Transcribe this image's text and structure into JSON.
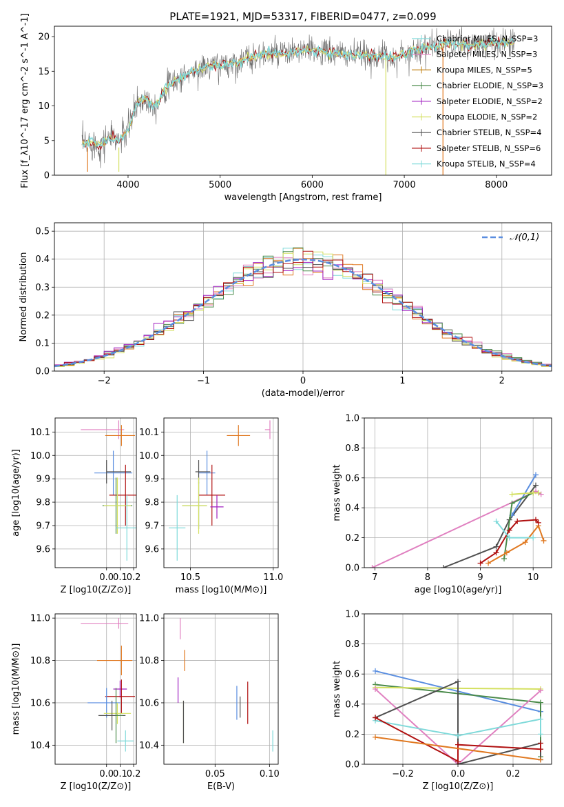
{
  "figure_title": "PLATE=1921, MJD=53317, FIBERID=0477, z=0.099",
  "colors": {
    "blue": "#5a8ee0",
    "orange": "#e07820",
    "green": "#4a8a4a",
    "purple": "#a020c0",
    "yellow": "#d4e060",
    "dark": "#505050",
    "red": "#b01010",
    "cyan": "#80dada",
    "pink": "#e080c0"
  },
  "chart_data": [
    {
      "id": "spectrum",
      "type": "line",
      "title": "PLATE=1921, MJD=53317, FIBERID=0477, z=0.099",
      "xlabel": "wavelength [Angstrom, rest frame]",
      "ylabel": "Flux [f_λ10^-17 erg cm^-2 s^-1 A^-1]",
      "xlim": [
        3200,
        8600
      ],
      "ylim": [
        0,
        21.5
      ],
      "xticks": [
        4000,
        5000,
        6000,
        7000,
        8000
      ],
      "yticks": [
        0,
        5,
        10,
        15,
        20
      ],
      "legend_position": "upper right",
      "legend": [
        {
          "label": "Chabrier MILES, N_SSP=3",
          "color": "#80dada"
        },
        {
          "label": "Salpeter MILES, N_SSP=3",
          "color": "#e080c0"
        },
        {
          "label": "Kroupa MILES, N_SSP=5",
          "color": "#c08010"
        },
        {
          "label": "Chabrier ELODIE, N_SSP=3",
          "color": "#4a8a4a"
        },
        {
          "label": "Salpeter ELODIE, N_SSP=2",
          "color": "#a020c0"
        },
        {
          "label": "Kroupa ELODIE, N_SSP=2",
          "color": "#d4e060"
        },
        {
          "label": "Chabrier STELIB, N_SSP=4",
          "color": "#505050"
        },
        {
          "label": "Salpeter STELIB, N_SSP=6",
          "color": "#b01010"
        },
        {
          "label": "Kroupa STELIB, N_SSP=4",
          "color": "#80dada"
        }
      ],
      "continuum": {
        "x": [
          3500,
          3600,
          3700,
          3800,
          3900,
          4000,
          4100,
          4200,
          4300,
          4400,
          4500,
          4700,
          4900,
          5100,
          5300,
          5500,
          5700,
          5900,
          6100,
          6300,
          6500,
          6700,
          6900,
          7100,
          7300,
          7500,
          7700,
          7900,
          8100,
          8200
        ],
        "y": [
          4.5,
          4.8,
          4.2,
          5.5,
          5.0,
          6.5,
          10.5,
          11.0,
          10.0,
          12.5,
          13.5,
          15.0,
          15.8,
          16.0,
          16.8,
          17.5,
          17.5,
          18.0,
          17.8,
          17.5,
          17.3,
          17.2,
          17.0,
          18.0,
          18.6,
          19.0,
          18.8,
          19.0,
          19.2,
          19.0
        ]
      },
      "spikes": [
        {
          "x": 3900,
          "y0": 4.0,
          "y1": 0.5,
          "color": "#d4e060"
        },
        {
          "x": 3560,
          "y0": 4.0,
          "y1": 0.5,
          "color": "#e07820"
        },
        {
          "x": 6800,
          "y0": 17.0,
          "y1": 0,
          "color": "#d4e060"
        },
        {
          "x": 7420,
          "y0": 18.5,
          "y1": 0,
          "color": "#e07820"
        }
      ]
    },
    {
      "id": "residuals",
      "type": "step",
      "xlabel": "(data-model)/error",
      "ylabel": "Normed distribution",
      "xlim": [
        -2.5,
        2.5
      ],
      "ylim": [
        0,
        0.53
      ],
      "xticks": [
        -2,
        -1,
        0,
        1,
        2
      ],
      "yticks": [
        0.0,
        0.1,
        0.2,
        0.3,
        0.4,
        0.5
      ],
      "grid": true,
      "legend_position": "upper right",
      "legend": [
        {
          "label": "𝒩(0,1)",
          "color": "#5a8ee0",
          "style": "dashed"
        }
      ],
      "bin_width": 0.1,
      "reference_curve": "standard normal N(0,1)",
      "series": [
        {
          "color": "#80dada",
          "offset": 0.0,
          "scale": 1.0
        },
        {
          "color": "#e080c0",
          "offset": 0.01,
          "scale": 1.04
        },
        {
          "color": "#e07820",
          "offset": -0.01,
          "scale": 0.98
        },
        {
          "color": "#4a8a4a",
          "offset": 0.02,
          "scale": 1.02
        },
        {
          "color": "#a020c0",
          "offset": -0.02,
          "scale": 1.03
        },
        {
          "color": "#d4e060",
          "offset": 0.01,
          "scale": 0.97
        },
        {
          "color": "#505050",
          "offset": 0.0,
          "scale": 1.01
        },
        {
          "color": "#b01010",
          "offset": -0.01,
          "scale": 1.0
        }
      ]
    },
    {
      "id": "age_vs_Z",
      "type": "errorbar",
      "xlabel": "Z [log10(Z/Z⊙)]",
      "ylabel": "age [log10(age/yr)]",
      "xlim": [
        -0.38,
        0.22
      ],
      "ylim": [
        9.52,
        10.16
      ],
      "xticks": [
        0.0,
        0.1,
        0.2
      ],
      "yticks": [
        9.6,
        9.7,
        9.8,
        9.9,
        10.0,
        10.1
      ],
      "grid": true,
      "points": [
        {
          "x": 0.09,
          "xerr": [
            0.28,
            0.04
          ],
          "y": 10.11,
          "yerr": 0.04,
          "color": "#e080c0"
        },
        {
          "x": 0.11,
          "xerr": [
            0.12,
            0.1
          ],
          "y": 10.085,
          "yerr": 0.045,
          "color": "#e07820"
        },
        {
          "x": 0.05,
          "xerr": [
            0.14,
            0.14
          ],
          "y": 9.925,
          "yerr": 0.095,
          "color": "#5a8ee0"
        },
        {
          "x": 0.0,
          "xerr": [
            0.0,
            0.18
          ],
          "y": 9.93,
          "yerr": 0.05,
          "color": "#505050"
        },
        {
          "x": 0.14,
          "xerr": [
            0.12,
            0.14
          ],
          "y": 9.83,
          "yerr": 0.13,
          "color": "#b01010"
        },
        {
          "x": 0.07,
          "xerr": [
            0.1,
            0.12
          ],
          "y": 9.785,
          "yerr": 0.12,
          "color": "#4a8a4a"
        },
        {
          "x": 0.08,
          "xerr": [
            0.1,
            0.1
          ],
          "y": 9.785,
          "yerr": 0.12,
          "color": "#d4e060"
        },
        {
          "x": 0.15,
          "xerr": [
            0.08,
            0.07
          ],
          "y": 9.69,
          "yerr": 0.14,
          "color": "#80dada"
        }
      ]
    },
    {
      "id": "age_vs_mass",
      "type": "errorbar",
      "xlabel": "mass [log10(M/M⊙)]",
      "xlim": [
        10.34,
        11.03
      ],
      "ylim": [
        9.52,
        10.16
      ],
      "xticks": [
        10.5,
        11.0
      ],
      "yticks": [
        9.6,
        9.7,
        9.8,
        9.9,
        10.0,
        10.1
      ],
      "grid": true,
      "points": [
        {
          "x": 10.98,
          "xerr": [
            0.03,
            0.0
          ],
          "y": 10.11,
          "yerr": 0.04,
          "color": "#e080c0"
        },
        {
          "x": 10.79,
          "xerr": [
            0.07,
            0.07
          ],
          "y": 10.085,
          "yerr": 0.045,
          "color": "#e07820"
        },
        {
          "x": 10.6,
          "xerr": [
            0.05,
            0.05
          ],
          "y": 9.925,
          "yerr": 0.095,
          "color": "#5a8ee0"
        },
        {
          "x": 10.55,
          "xerr": [
            0.02,
            0.07
          ],
          "y": 9.93,
          "yerr": 0.05,
          "color": "#505050"
        },
        {
          "x": 10.63,
          "xerr": [
            0.08,
            0.08
          ],
          "y": 9.83,
          "yerr": 0.13,
          "color": "#b01010"
        },
        {
          "x": 10.55,
          "xerr": [
            0.1,
            0.05
          ],
          "y": 9.785,
          "yerr": 0.1,
          "color": "#4a8a4a"
        },
        {
          "x": 10.55,
          "xerr": [
            0.1,
            0.05
          ],
          "y": 9.785,
          "yerr": 0.12,
          "color": "#d4e060"
        },
        {
          "x": 10.66,
          "xerr": [
            0.04,
            0.04
          ],
          "y": 9.78,
          "yerr": 0.05,
          "color": "#a020c0"
        },
        {
          "x": 10.42,
          "xerr": [
            0.05,
            0.05
          ],
          "y": 9.69,
          "yerr": 0.14,
          "color": "#80dada"
        }
      ]
    },
    {
      "id": "weight_vs_age",
      "type": "line",
      "xlabel": "age [log10(age/yr)]",
      "ylabel": "mass weight",
      "xlim": [
        6.8,
        10.35
      ],
      "ylim": [
        0,
        1.0
      ],
      "xticks": [
        7,
        8,
        9,
        10
      ],
      "yticks": [
        0.0,
        0.2,
        0.4,
        0.6,
        0.8,
        1.0
      ],
      "grid": true,
      "series": [
        {
          "color": "#e080c0",
          "x": [
            6.95,
            10.05,
            10.15
          ],
          "y": [
            0.0,
            0.51,
            0.49
          ]
        },
        {
          "color": "#505050",
          "x": [
            8.3,
            9.3,
            9.55,
            10.05
          ],
          "y": [
            0.0,
            0.14,
            0.32,
            0.55
          ]
        },
        {
          "color": "#5a8ee0",
          "x": [
            9.6,
            10.05
          ],
          "y": [
            0.35,
            0.62
          ]
        },
        {
          "color": "#4a8a4a",
          "x": [
            9.45,
            9.6,
            10.0,
            10.1
          ],
          "y": [
            0.06,
            0.43,
            0.5,
            0.5
          ]
        },
        {
          "color": "#d4e060",
          "x": [
            9.6,
            10.0,
            10.1
          ],
          "y": [
            0.49,
            0.5,
            0.5
          ]
        },
        {
          "color": "#e07820",
          "x": [
            9.15,
            9.5,
            9.85,
            10.1,
            10.2
          ],
          "y": [
            0.03,
            0.1,
            0.17,
            0.28,
            0.18
          ]
        },
        {
          "color": "#b01010",
          "x": [
            9.0,
            9.3,
            9.55,
            9.7,
            10.05,
            10.1
          ],
          "y": [
            0.03,
            0.1,
            0.25,
            0.31,
            0.32,
            0.3
          ]
        },
        {
          "color": "#80dada",
          "x": [
            9.3,
            9.55,
            10.0
          ],
          "y": [
            0.31,
            0.2,
            0.2
          ]
        }
      ]
    },
    {
      "id": "mass_vs_Z",
      "type": "errorbar",
      "xlabel": "Z [log10(Z/Z⊙)]",
      "ylabel": "mass [log10(M/M⊙)]",
      "xlim": [
        -0.38,
        0.22
      ],
      "ylim": [
        10.31,
        11.02
      ],
      "xticks": [
        0.0,
        0.1,
        0.2
      ],
      "yticks": [
        10.4,
        10.6,
        10.8,
        11.0
      ],
      "grid": true,
      "points": [
        {
          "x": 0.09,
          "xerr": [
            0.28,
            0.07
          ],
          "y": 10.975,
          "yerr": 0.025,
          "color": "#e080c0"
        },
        {
          "x": 0.11,
          "xerr": [
            0.18,
            0.08
          ],
          "y": 10.8,
          "yerr": 0.07,
          "color": "#e07820"
        },
        {
          "x": 0.1,
          "xerr": [
            0.05,
            0.05
          ],
          "y": 10.665,
          "yerr": 0.04,
          "color": "#a020c0"
        },
        {
          "x": 0.11,
          "xerr": [
            0.12,
            0.1
          ],
          "y": 10.63,
          "yerr": 0.08,
          "color": "#b01010"
        },
        {
          "x": 0.0,
          "xerr": [
            0.14,
            0.1
          ],
          "y": 10.6,
          "yerr": 0.07,
          "color": "#5a8ee0"
        },
        {
          "x": 0.08,
          "xerr": [
            0.1,
            0.1
          ],
          "y": 10.55,
          "yerr": 0.05,
          "color": "#d4e060"
        },
        {
          "x": 0.04,
          "xerr": [
            0.1,
            0.1
          ],
          "y": 10.54,
          "yerr": 0.07,
          "color": "#505050"
        },
        {
          "x": 0.07,
          "xerr": [
            0.0,
            0.05
          ],
          "y": 10.54,
          "yerr": 0.13,
          "color": "#4a8a4a"
        },
        {
          "x": 0.14,
          "xerr": [
            0.06,
            0.06
          ],
          "y": 10.42,
          "yerr": 0.05,
          "color": "#80dada"
        }
      ]
    },
    {
      "id": "mass_vs_ebv",
      "type": "errorbar",
      "xlabel": "E(B-V)",
      "xlim": [
        0.003,
        0.108
      ],
      "ylim": [
        10.31,
        11.02
      ],
      "xticks": [
        0.05,
        0.1
      ],
      "yticks": [
        10.4,
        10.6,
        10.8,
        11.0
      ],
      "grid": true,
      "points": [
        {
          "x": 0.018,
          "y": 10.95,
          "yerr": 0.05,
          "color": "#e080c0"
        },
        {
          "x": 0.022,
          "y": 10.8,
          "yerr": 0.05,
          "color": "#e07820"
        },
        {
          "x": 0.016,
          "y": 10.66,
          "yerr": 0.06,
          "color": "#a020c0"
        },
        {
          "x": 0.021,
          "y": 10.51,
          "yerr": 0.1,
          "color": "#d4e060"
        },
        {
          "x": 0.021,
          "y": 10.51,
          "yerr": 0.1,
          "color": "#505050"
        },
        {
          "x": 0.07,
          "y": 10.6,
          "yerr": 0.08,
          "color": "#5a8ee0"
        },
        {
          "x": 0.073,
          "y": 10.58,
          "yerr": 0.05,
          "color": "#505050"
        },
        {
          "x": 0.08,
          "y": 10.6,
          "yerr": 0.1,
          "color": "#b01010"
        },
        {
          "x": 0.103,
          "y": 10.42,
          "yerr": 0.05,
          "color": "#80dada"
        }
      ]
    },
    {
      "id": "weight_vs_Z",
      "type": "line",
      "xlabel": "Z [log10(Z/Z⊙)]",
      "ylabel": "mass weight",
      "xlim": [
        -0.34,
        0.34
      ],
      "ylim": [
        0,
        1.0
      ],
      "xticks": [
        -0.2,
        0.0,
        0.2
      ],
      "yticks": [
        0.0,
        0.2,
        0.4,
        0.6,
        0.8,
        1.0
      ],
      "grid": true,
      "series": [
        {
          "color": "#5a8ee0",
          "x": [
            -0.3,
            0.3
          ],
          "y": [
            0.62,
            0.35
          ]
        },
        {
          "color": "#4a8a4a",
          "x": [
            -0.3,
            0.3,
            0.3
          ],
          "y": [
            0.53,
            0.41,
            0.05
          ]
        },
        {
          "color": "#d4e060",
          "x": [
            -0.3,
            0.3
          ],
          "y": [
            0.51,
            0.5
          ]
        },
        {
          "color": "#e080c0",
          "x": [
            -0.3,
            0.0,
            0.3
          ],
          "y": [
            0.5,
            0.0,
            0.49
          ]
        },
        {
          "color": "#505050",
          "x": [
            -0.3,
            0.0,
            0.0,
            0.3,
            0.3
          ],
          "y": [
            0.31,
            0.55,
            0.0,
            0.14,
            0.03
          ]
        },
        {
          "color": "#80dada",
          "x": [
            -0.3,
            0.0,
            0.3,
            0.3
          ],
          "y": [
            0.29,
            0.19,
            0.3,
            0.2
          ]
        },
        {
          "color": "#b01010",
          "x": [
            -0.3,
            0.0,
            0.0,
            0.3,
            0.3
          ],
          "y": [
            0.31,
            0.02,
            0.13,
            0.1,
            0.14
          ]
        },
        {
          "color": "#e07820",
          "x": [
            -0.3,
            0.3
          ],
          "y": [
            0.18,
            0.03
          ]
        }
      ]
    }
  ]
}
